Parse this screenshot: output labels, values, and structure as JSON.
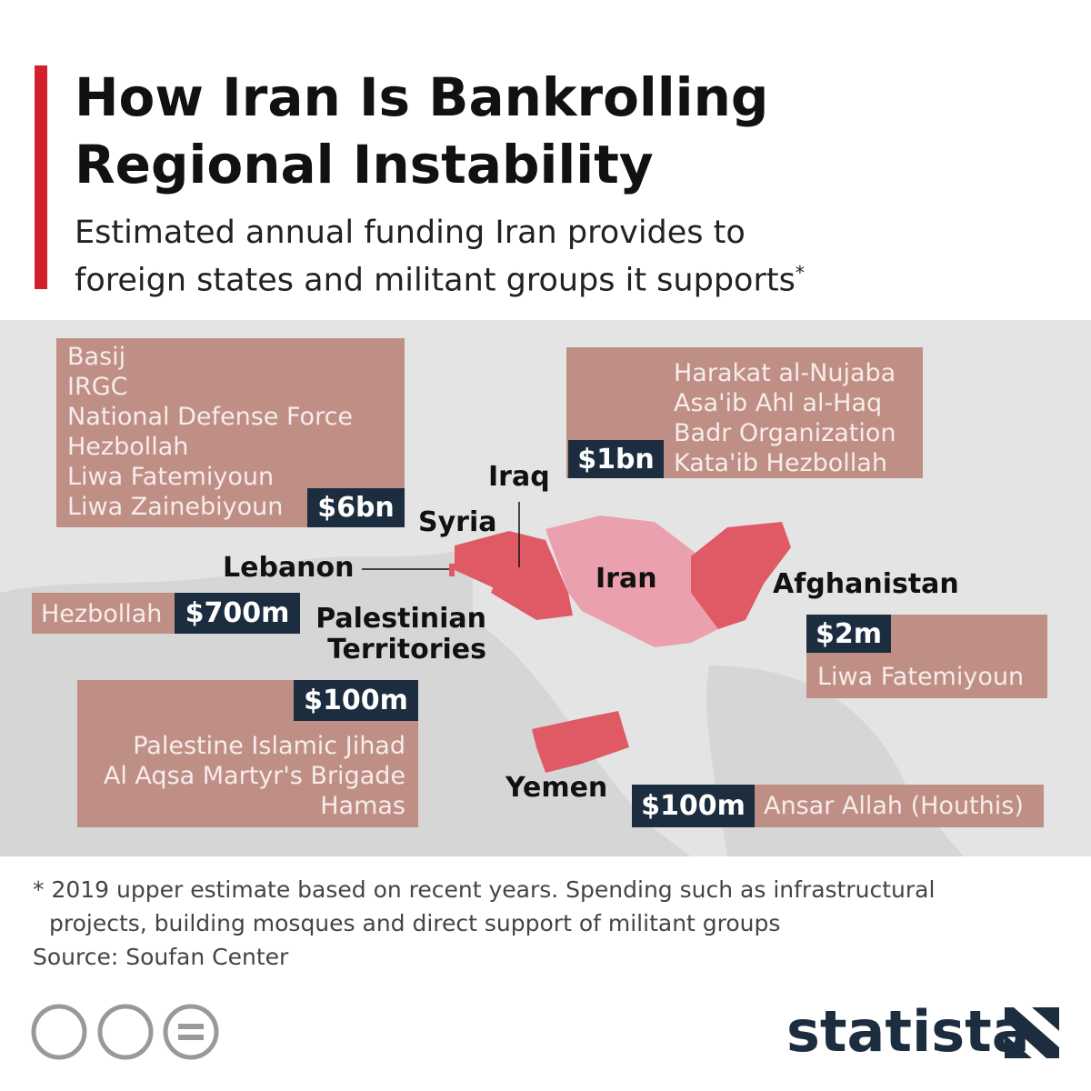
{
  "header": {
    "title": [
      "How Iran Is Bankrolling",
      "Regional Instability"
    ],
    "subtitle": [
      "Estimated annual funding Iran provides to",
      "foreign states and militant groups it supports"
    ],
    "subtitle_mark": "*"
  },
  "countries": {
    "iraq": "Iraq",
    "syria": "Syria",
    "lebanon": "Lebanon",
    "palestine": [
      "Palestinian",
      "Territories"
    ],
    "iran": "Iran",
    "afghanistan": "Afghanistan",
    "yemen": "Yemen"
  },
  "groups": [
    {
      "amount": "$6bn",
      "members": [
        "Basij",
        "IRGC",
        "National Defense Force",
        "Hezbollah",
        "Liwa Fatemiyoun",
        "Liwa Zainebiyoun"
      ]
    },
    {
      "amount": "$1bn",
      "members": [
        "Harakat al-Nujaba",
        "Asa'ib Ahl al-Haq",
        "Badr Organization",
        "Kata'ib Hezbollah"
      ]
    },
    {
      "amount": "$700m",
      "members": [
        "Hezbollah"
      ]
    },
    {
      "amount": "$100m",
      "members": [
        "Palestine Islamic Jihad",
        "Al Aqsa Martyr's Brigade",
        "Hamas"
      ]
    },
    {
      "amount": "$2m",
      "members": [
        "Liwa Fatemiyoun"
      ]
    },
    {
      "amount": "$100m",
      "members": [
        "Ansar Allah (Houthis)"
      ]
    }
  ],
  "footer": {
    "note": [
      "* 2019 upper estimate based on recent years. Spending such as infrastructural",
      "projects, building mosques and direct support of militant groups"
    ],
    "source": "Source: Soufan Center",
    "brand": "statista"
  }
}
